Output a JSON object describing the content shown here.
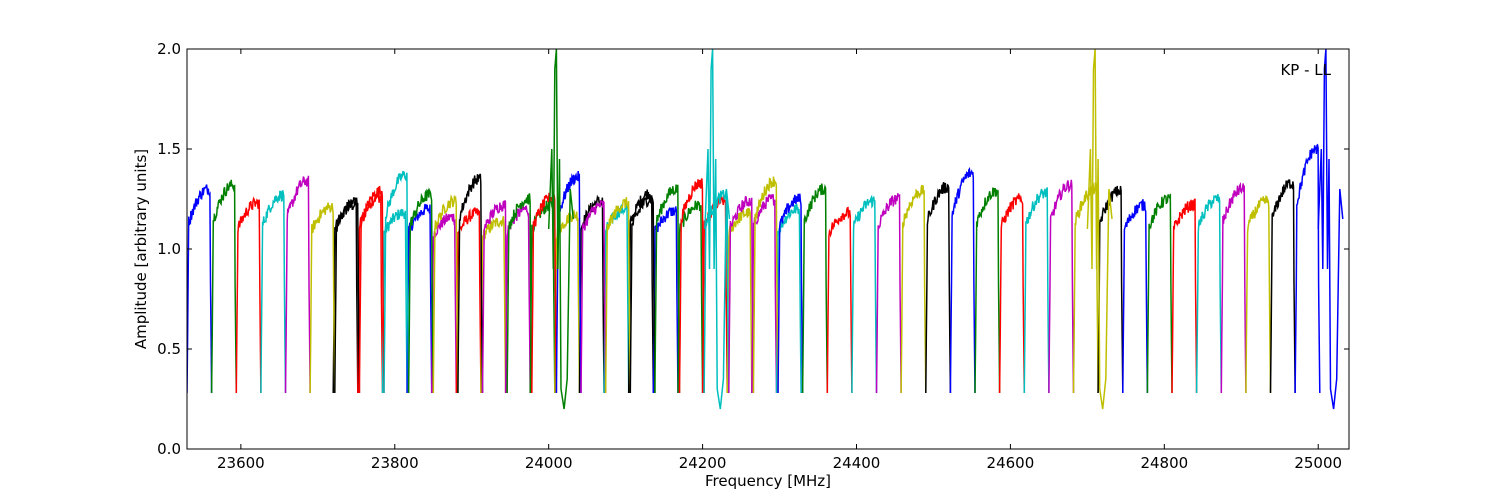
{
  "chart_data": {
    "type": "line",
    "xlabel": "Frequency [MHz]",
    "ylabel": "Amplitude [arbitrary units]",
    "annotation": "KP - LL",
    "xlim": [
      23530,
      25040
    ],
    "ylim": [
      0.0,
      2.0
    ],
    "x_ticks": [
      23600,
      23800,
      24000,
      24200,
      24400,
      24600,
      24800,
      25000
    ],
    "x_tick_labels": [
      "23600",
      "23800",
      "24000",
      "24200",
      "24400",
      "24600",
      "24800",
      "25000"
    ],
    "y_ticks": [
      0.0,
      0.5,
      1.0,
      1.5,
      2.0
    ],
    "y_tick_labels": [
      "0.0",
      "0.5",
      "1.0",
      "1.5",
      "2.0"
    ],
    "grid": false,
    "colors": [
      "#0000ff",
      "#008000",
      "#ff0000",
      "#00bfbf",
      "#bf00bf",
      "#bfbf00",
      "#000000"
    ],
    "layer_a": {
      "start": 23530,
      "width": 32,
      "colors": [
        "#0000ff",
        "#008000",
        "#ff0000",
        "#00bfbf",
        "#bf00bf",
        "#bfbf00",
        "#000000",
        "#ff0000",
        "#00bfbf",
        "#008000",
        "#bfbf00",
        "#000000",
        "#bf00bf",
        "#008000",
        "#ff0000",
        "#0000ff",
        "#bf00bf",
        "#bfbf00",
        "#000000",
        "#008000",
        "#ff0000",
        "#00bfbf",
        "#bf00bf",
        "#bfbf00",
        "#0000ff",
        "#008000",
        "#ff0000",
        "#00bfbf",
        "#bf00bf",
        "#bfbf00",
        "#000000",
        "#0000ff",
        "#008000",
        "#ff0000",
        "#00bfbf",
        "#bf00bf",
        "#bfbf00",
        "#000000",
        "#0000ff",
        "#008000",
        "#ff0000",
        "#00bfbf",
        "#bf00bf",
        "#bfbf00",
        "#000000",
        "#0000ff"
      ],
      "peaks": [
        1.3,
        1.32,
        1.23,
        1.27,
        1.34,
        1.21,
        1.24,
        1.29,
        1.37,
        1.27,
        1.24,
        1.35,
        1.22,
        1.25,
        1.26,
        1.36,
        1.22,
        1.23,
        1.25,
        1.3,
        1.33,
        1.27,
        1.24,
        1.34,
        1.25,
        1.3,
        1.18,
        1.24,
        1.25,
        1.29,
        1.31,
        1.38,
        1.29,
        1.25,
        1.28,
        1.32,
        1.3,
        1.29,
        1.22,
        1.25,
        1.22,
        1.25,
        1.3,
        1.24,
        1.33,
        1.5
      ]
    },
    "layer_b": {
      "start": 23720,
      "width": 32,
      "colors": [
        "#000000",
        "#ff0000",
        "#00bfbf",
        "#0000ff",
        "#bf00bf",
        "#ff0000",
        "#bfbf00",
        "#bf00bf",
        "#008000",
        "#bfbf00",
        "#000000",
        "#00bfbf",
        "#000000",
        "#0000ff",
        "#008000",
        "#ff0000",
        "#bfbf00",
        "#bf00bf",
        "#00bfbf"
      ],
      "peaks": [
        1.22,
        1.26,
        1.18,
        1.2,
        1.16,
        1.18,
        1.14,
        1.2,
        1.22,
        1.17,
        1.24,
        1.2,
        1.28,
        1.19,
        1.22,
        1.24,
        1.18,
        1.25,
        1.2
      ]
    },
    "spikes": [
      {
        "x": 24010,
        "peak": 2.0,
        "color": "#008000"
      },
      {
        "x": 24213,
        "peak": 2.0,
        "color": "#00bfbf"
      },
      {
        "x": 24710,
        "peak": 2.0,
        "color": "#bfbf00"
      },
      {
        "x": 25010,
        "peak": 2.0,
        "color": "#0000ff"
      }
    ]
  }
}
